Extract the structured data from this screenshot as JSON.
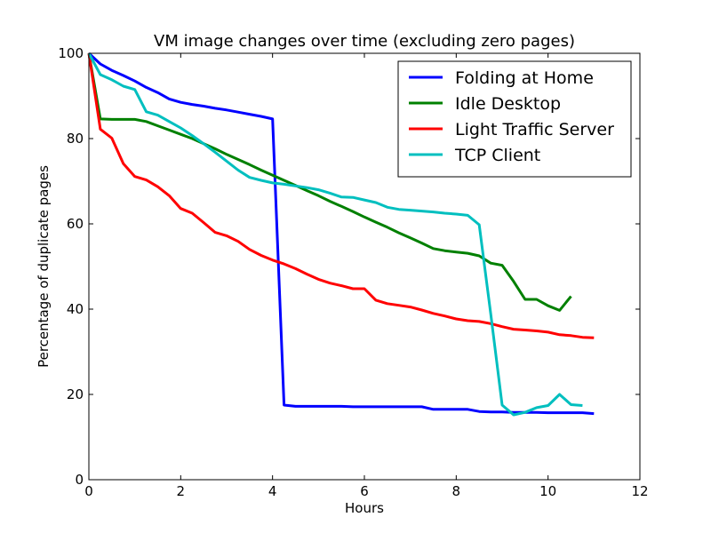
{
  "chart_data": {
    "type": "line",
    "title": "VM image changes over time (excluding zero pages)",
    "xlabel": "Hours",
    "ylabel": "Percentage of duplicate pages",
    "xlim": [
      0,
      12
    ],
    "ylim": [
      0,
      100
    ],
    "xticks": [
      "0",
      "2",
      "4",
      "6",
      "8",
      "10",
      "12"
    ],
    "yticks": [
      "0",
      "20",
      "40",
      "60",
      "80",
      "100"
    ],
    "grid": false,
    "legend_position": "top-right",
    "series": [
      {
        "name": "Folding at Home",
        "color": "#0000ff",
        "x": [
          0,
          0.25,
          0.5,
          0.75,
          1.0,
          1.25,
          1.5,
          1.75,
          2.0,
          2.25,
          2.5,
          2.75,
          3.0,
          3.25,
          3.5,
          3.75,
          4.0,
          4.25,
          4.5,
          4.75,
          5.0,
          5.25,
          5.5,
          5.75,
          6.0,
          6.25,
          6.5,
          6.75,
          7.0,
          7.25,
          7.5,
          7.75,
          8.0,
          8.25,
          8.5,
          8.75,
          9.0,
          9.25,
          9.5,
          9.75,
          10.0,
          10.25,
          10.5,
          10.75,
          11.0
        ],
        "y": [
          100,
          97.5,
          96,
          94.8,
          93.5,
          92,
          90.8,
          89.3,
          88.5,
          88,
          87.6,
          87.1,
          86.7,
          86.2,
          85.7,
          85.2,
          84.6,
          17.5,
          17.2,
          17.2,
          17.2,
          17.2,
          17.2,
          17.1,
          17.1,
          17.1,
          17.1,
          17.1,
          17.1,
          17.1,
          16.5,
          16.5,
          16.5,
          16.5,
          16.0,
          15.9,
          15.9,
          15.8,
          15.8,
          15.8,
          15.7,
          15.7,
          15.7,
          15.7,
          15.5
        ]
      },
      {
        "name": "Idle Desktop",
        "color": "#008000",
        "x": [
          0,
          0.25,
          0.5,
          0.75,
          1.0,
          1.25,
          1.5,
          1.75,
          2.0,
          2.25,
          2.5,
          2.75,
          3.0,
          3.25,
          3.5,
          3.75,
          4.0,
          4.25,
          4.5,
          4.75,
          5.0,
          5.25,
          5.5,
          5.75,
          6.0,
          6.25,
          6.5,
          6.75,
          7.0,
          7.25,
          7.5,
          7.75,
          8.0,
          8.25,
          8.5,
          8.75,
          9.0,
          9.25,
          9.5,
          9.75,
          10.0,
          10.25,
          10.5
        ],
        "y": [
          100,
          84.6,
          84.5,
          84.5,
          84.5,
          84,
          83.0,
          82,
          81,
          80,
          78.8,
          77.6,
          76.3,
          75.1,
          73.9,
          72.6,
          71.4,
          70.2,
          69,
          67.8,
          66.6,
          65.3,
          64.1,
          62.9,
          61.6,
          60.4,
          59.2,
          57.9,
          56.7,
          55.5,
          54.2,
          53.7,
          53.4,
          53.1,
          52.5,
          50.8,
          50.3,
          46.5,
          42.3,
          42.3,
          40.8,
          39.7,
          43.0
        ]
      },
      {
        "name": "Light Traffic Server",
        "color": "#ff0000",
        "x": [
          0,
          0.25,
          0.5,
          0.75,
          1.0,
          1.25,
          1.5,
          1.75,
          2.0,
          2.25,
          2.5,
          2.75,
          3.0,
          3.25,
          3.5,
          3.75,
          4.0,
          4.25,
          4.5,
          4.75,
          5.0,
          5.25,
          5.5,
          5.75,
          6.0,
          6.25,
          6.5,
          6.75,
          7.0,
          7.25,
          7.5,
          7.75,
          8.0,
          8.25,
          8.5,
          8.75,
          9.0,
          9.25,
          9.5,
          9.75,
          10.0,
          10.25,
          10.5,
          10.75,
          11.0
        ],
        "y": [
          100,
          82.2,
          80.1,
          74.1,
          71.1,
          70.3,
          68.7,
          66.6,
          63.6,
          62.5,
          60.3,
          58.0,
          57.2,
          55.9,
          54.0,
          52.6,
          51.5,
          50.6,
          49.5,
          48.2,
          47.0,
          46.1,
          45.5,
          44.8,
          44.8,
          42.1,
          41.3,
          40.9,
          40.5,
          39.8,
          39.0,
          38.4,
          37.7,
          37.3,
          37.1,
          36.6,
          35.9,
          35.3,
          35.1,
          34.9,
          34.6,
          34.0,
          33.8,
          33.4,
          33.3
        ]
      },
      {
        "name": "TCP Client",
        "color": "#00bfbf",
        "x": [
          0,
          0.25,
          0.5,
          0.75,
          1.0,
          1.25,
          1.5,
          1.75,
          2.0,
          2.25,
          2.5,
          2.75,
          3.0,
          3.25,
          3.5,
          3.75,
          4.0,
          4.25,
          4.5,
          4.75,
          5.0,
          5.25,
          5.5,
          5.75,
          6.0,
          6.25,
          6.5,
          6.75,
          7.0,
          7.25,
          7.5,
          7.75,
          8.0,
          8.25,
          8.5,
          8.75,
          9.0,
          9.25,
          9.5,
          9.75,
          10.0,
          10.25,
          10.5,
          10.75
        ],
        "y": [
          100,
          95.0,
          93.8,
          92.3,
          91.5,
          86.3,
          85.5,
          84.0,
          82.5,
          80.7,
          78.8,
          76.8,
          74.7,
          72.6,
          70.9,
          70.2,
          69.6,
          69.3,
          68.9,
          68.5,
          68.0,
          67.2,
          66.3,
          66.2,
          65.6,
          65.0,
          63.9,
          63.4,
          63.2,
          63.0,
          62.8,
          62.5,
          62.3,
          62.0,
          59.8,
          39.0,
          17.5,
          15.2,
          15.8,
          16.9,
          17.4,
          20.0,
          17.6,
          17.4
        ]
      }
    ]
  }
}
